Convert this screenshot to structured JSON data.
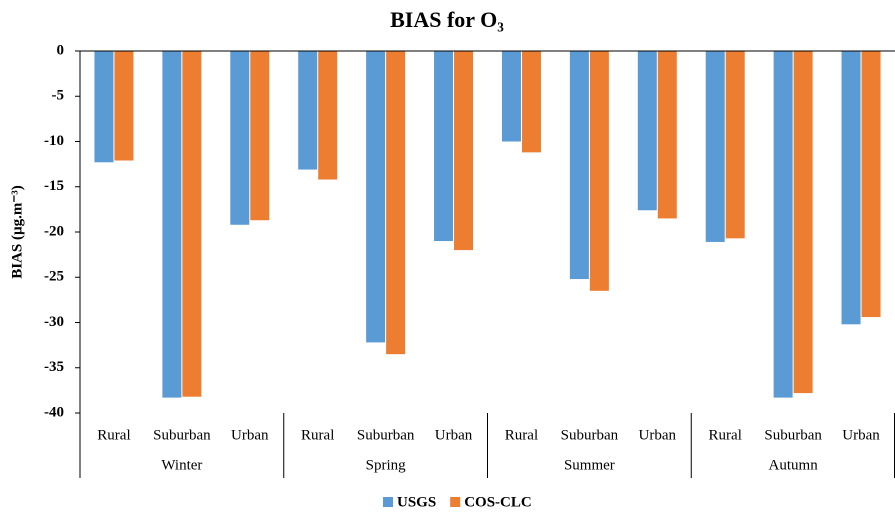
{
  "chart_data": {
    "type": "bar",
    "title": "BIAS for O₃",
    "y_label": "BIAS (µg.m⁻³)",
    "categories": [
      "Rural",
      "Suburban",
      "Urban",
      "Rural",
      "Suburban",
      "Urban",
      "Rural",
      "Suburban",
      "Urban",
      "Rural",
      "Suburban",
      "Urban"
    ],
    "category_groups": [
      "Winter",
      "Spring",
      "Summer",
      "Autumn"
    ],
    "series": [
      {
        "name": "USGS",
        "color": "#5b9bd5",
        "values": [
          -12.3,
          -38.3,
          -19.2,
          -13.1,
          -32.2,
          -21.0,
          -10.0,
          -25.2,
          -17.6,
          -21.1,
          -38.3,
          -30.2
        ]
      },
      {
        "name": "COS-CLC",
        "color": "#ed7d31",
        "values": [
          -12.1,
          -38.2,
          -18.7,
          -14.2,
          -33.5,
          -22.0,
          -11.2,
          -26.5,
          -18.5,
          -20.7,
          -37.8,
          -29.4
        ]
      }
    ],
    "ylim": [
      -40,
      0
    ],
    "yticks": [
      0,
      -5,
      -10,
      -15,
      -20,
      -25,
      -30,
      -35,
      -40
    ],
    "legend": "bottom"
  }
}
